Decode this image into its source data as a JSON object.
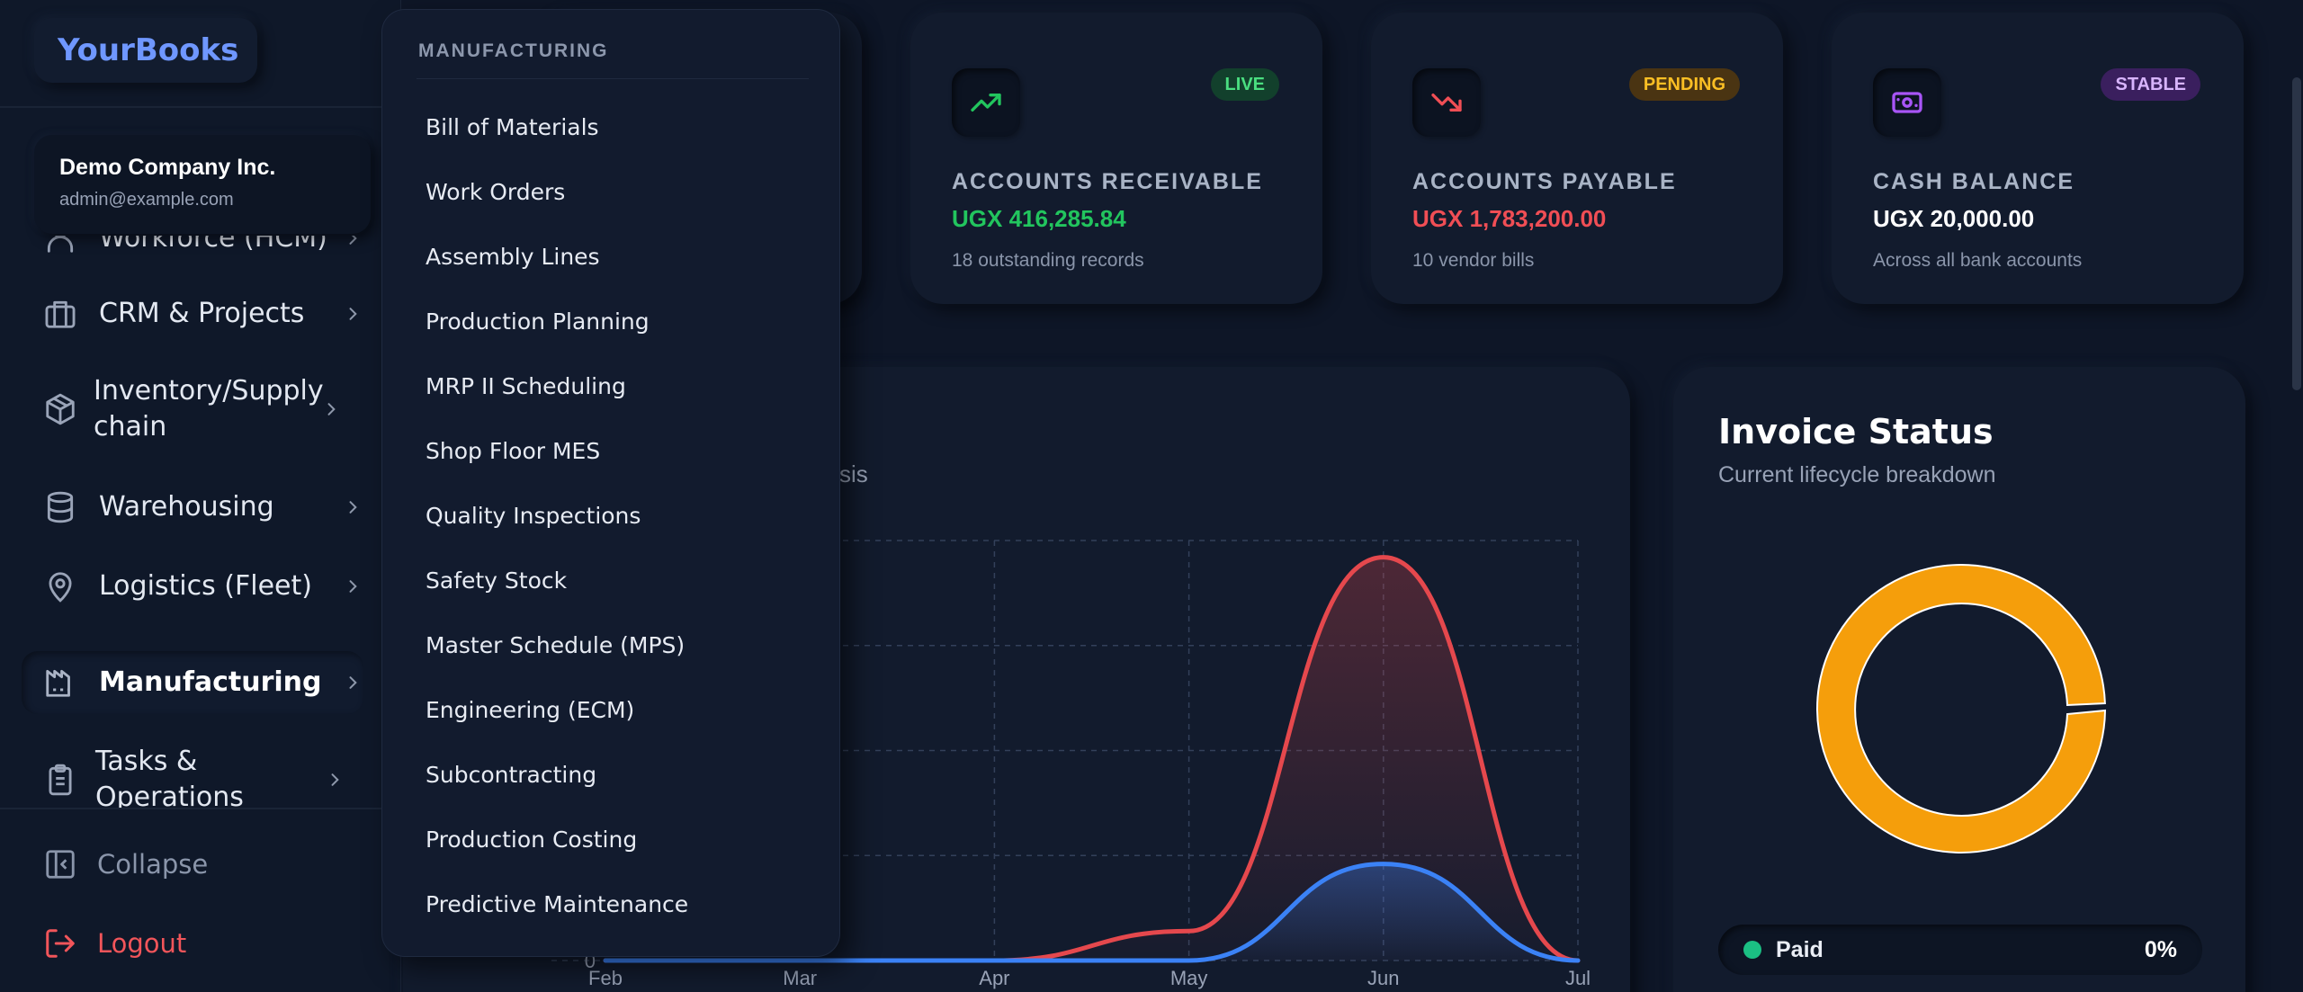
{
  "brand": "YourBooks",
  "company": {
    "name": "Demo Company Inc.",
    "email": "admin@example.com"
  },
  "sidebar": {
    "items": [
      {
        "label": "Workforce (HCM)",
        "icon": "users-icon"
      },
      {
        "label": "CRM & Projects",
        "icon": "briefcase-icon"
      },
      {
        "label": "Inventory/Supply chain",
        "icon": "package-icon"
      },
      {
        "label": "Warehousing",
        "icon": "database-icon"
      },
      {
        "label": "Logistics (Fleet)",
        "icon": "map-pin-icon"
      },
      {
        "label": "Manufacturing",
        "icon": "factory-icon",
        "active": true
      },
      {
        "label": "Tasks & Operations",
        "icon": "clipboard-icon"
      }
    ],
    "collapse_label": "Collapse",
    "logout_label": "Logout"
  },
  "menu": {
    "header": "MANUFACTURING",
    "items": [
      "Bill of Materials",
      "Work Orders",
      "Assembly Lines",
      "Production Planning",
      "MRP II Scheduling",
      "Shop Floor MES",
      "Quality Inspections",
      "Safety Stock",
      "Master Schedule (MPS)",
      "Engineering (ECM)",
      "Subcontracting",
      "Production Costing",
      "Predictive Maintenance"
    ]
  },
  "cards": [
    {
      "badge": "LIVE",
      "title": "ACCOUNTS RECEIVABLE",
      "value": "UGX 416,285.84",
      "sub": "18 outstanding records",
      "icon": "trending-up-icon",
      "accent": "#22c55e"
    },
    {
      "badge": "PENDING",
      "title": "ACCOUNTS PAYABLE",
      "value": "UGX 1,783,200.00",
      "sub": "10 vendor bills",
      "icon": "trending-down-icon",
      "accent": "#f04e55"
    },
    {
      "badge": "STABLE",
      "title": "CASH BALANCE",
      "value": "UGX 20,000.00",
      "sub": "Across all bank accounts",
      "icon": "banknote-icon",
      "accent": "#a855f7"
    }
  ],
  "chart_panel": {
    "subtitle_fragment": "ysis"
  },
  "chart_data": {
    "type": "area",
    "categories": [
      "Feb",
      "Mar",
      "Apr",
      "May",
      "Jun",
      "Jul"
    ],
    "series": [
      {
        "values": [
          0,
          0,
          0,
          0.7,
          9.6,
          0
        ],
        "color": "#e5484d"
      },
      {
        "values": [
          0,
          0,
          0,
          0,
          2.3,
          0
        ],
        "color": "#3b82f6"
      }
    ],
    "ylim": [
      0,
      10
    ],
    "y_tick_labels": [
      "0"
    ],
    "grid": true
  },
  "invoice_status": {
    "title": "Invoice Status",
    "subtitle": "Current lifecycle breakdown",
    "legend": [
      {
        "label": "Paid",
        "value": "0%"
      }
    ],
    "donut_color": "#f59e0b"
  }
}
